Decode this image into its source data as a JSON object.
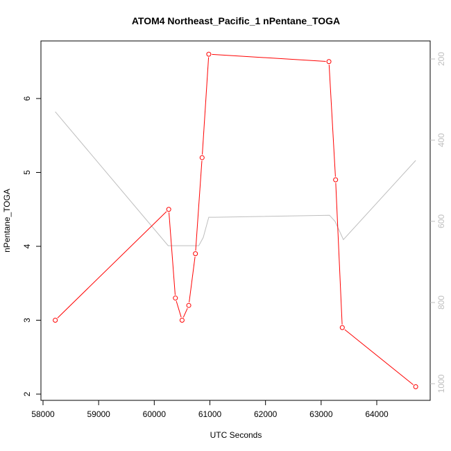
{
  "chart_data": {
    "type": "line",
    "title": "ATOM4 Northeast_Pacific_1 nPentane_TOGA",
    "xlabel": "UTC Seconds",
    "ylabel": "nPentane_TOGA",
    "xlim": [
      58000,
      65000
    ],
    "ylim": [
      2,
      6.9
    ],
    "x_ticks": [
      "58000",
      "59000",
      "60000",
      "61000",
      "62000",
      "63000",
      "64000"
    ],
    "y_ticks": [
      "2",
      "3",
      "4",
      "5",
      "6"
    ],
    "y2_ticks": [
      "200",
      "400",
      "600",
      "800",
      "1000"
    ],
    "y2lim": [
      1030,
      160
    ],
    "series": [
      {
        "color": "#ff0000",
        "marker": "circle",
        "axis": "left",
        "x": [
          58220,
          60260,
          60380,
          60500,
          60620,
          60740,
          60860,
          60980,
          63140,
          63260,
          63380,
          64700
        ],
        "y": [
          3.0,
          4.5,
          3.3,
          3.0,
          3.2,
          3.9,
          5.2,
          6.6,
          6.5,
          4.9,
          2.9,
          2.1
        ]
      },
      {
        "color": "#bebebe",
        "marker": "none",
        "axis": "right",
        "x": [
          58220,
          60250,
          60800,
          60880,
          60980,
          61100,
          63150,
          63250,
          63400,
          64700
        ],
        "y": [
          330,
          660,
          660,
          640,
          590,
          590,
          585,
          600,
          645,
          450
        ]
      }
    ]
  }
}
